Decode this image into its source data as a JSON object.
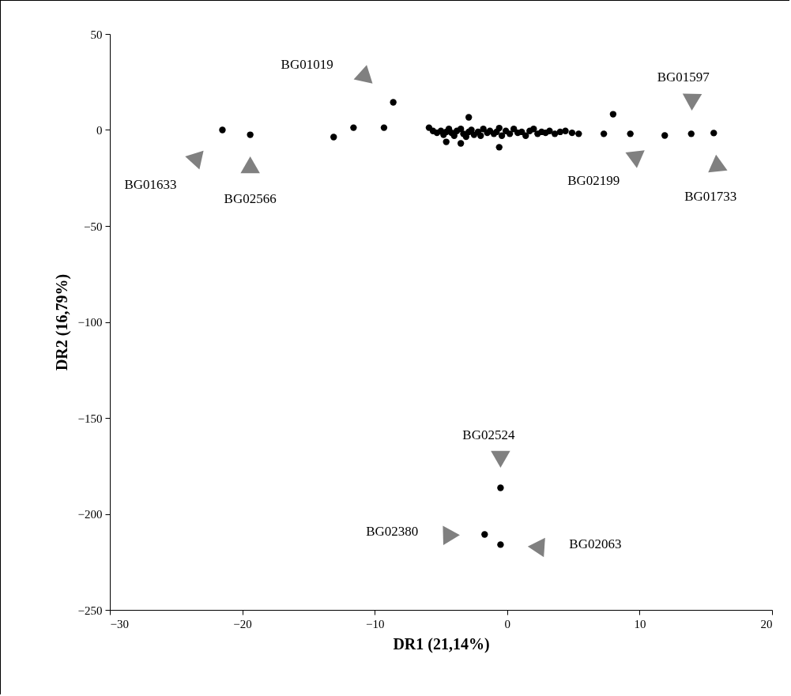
{
  "chart_data": {
    "type": "scatter",
    "xlabel": "DR1 (21,14%)",
    "ylabel": "DR2 (16,79%)",
    "x": [
      -21.5,
      -19.4,
      -13.1,
      -11.6,
      -9.3,
      -8.6,
      -5.9,
      -5.6,
      -5.3,
      -5.0,
      -4.8,
      -4.6,
      -4.4,
      -4.2,
      -4.0,
      -3.8,
      -3.5,
      -3.3,
      -3.1,
      -2.9,
      -2.7,
      -2.5,
      -2.2,
      -2.0,
      -1.8,
      -1.5,
      -1.3,
      -1.0,
      -0.8,
      -0.6,
      -0.4,
      -0.1,
      0.2,
      0.5,
      0.8,
      1.1,
      1.4,
      1.7,
      2.0,
      2.3,
      2.6,
      2.9,
      3.2,
      3.6,
      4.0,
      4.4,
      4.9,
      5.4,
      -4.6,
      -3.5,
      -2.9,
      -0.6,
      7.3,
      8.0,
      9.3,
      11.9,
      13.9,
      15.6,
      -0.5,
      -1.7,
      -0.5
    ],
    "values": [
      0,
      -2.5,
      -3.7,
      1.2,
      1.2,
      14.4,
      1.2,
      -0.5,
      -1.5,
      -0.5,
      -2.5,
      -1.0,
      0.5,
      -1.5,
      -3.0,
      -0.5,
      0.5,
      -2.0,
      -3.5,
      -1.0,
      0.0,
      -2.5,
      -1.0,
      -3.0,
      0.5,
      -1.5,
      -0.5,
      -2.0,
      -1.0,
      1.0,
      -3.0,
      -0.5,
      -2.0,
      0.5,
      -1.5,
      -1.0,
      -3.0,
      -0.5,
      0.5,
      -2.0,
      -1.0,
      -1.5,
      -0.5,
      -2.0,
      -1.0,
      -0.5,
      -1.5,
      -2.0,
      -6.2,
      -7.0,
      6.6,
      -9.0,
      -2.0,
      8.2,
      -2.0,
      -2.9,
      -2.0,
      -1.6,
      -186.4,
      -210.7,
      -216.0
    ],
    "color": "#000000",
    "marker": "circle",
    "xlim": [
      -30,
      20
    ],
    "xticks": [
      -30,
      -20,
      -10,
      0,
      10,
      20
    ],
    "ylim": [
      -250,
      50
    ],
    "yticks": [
      -250,
      -200,
      -150,
      -100,
      -50,
      0,
      50
    ],
    "grid": false,
    "legend": false,
    "annotations": [
      "BG01019",
      "BG01633",
      "BG02566",
      "BG01597",
      "BG02199",
      "BG01733",
      "BG02524",
      "BG02380",
      "BG02063"
    ]
  }
}
